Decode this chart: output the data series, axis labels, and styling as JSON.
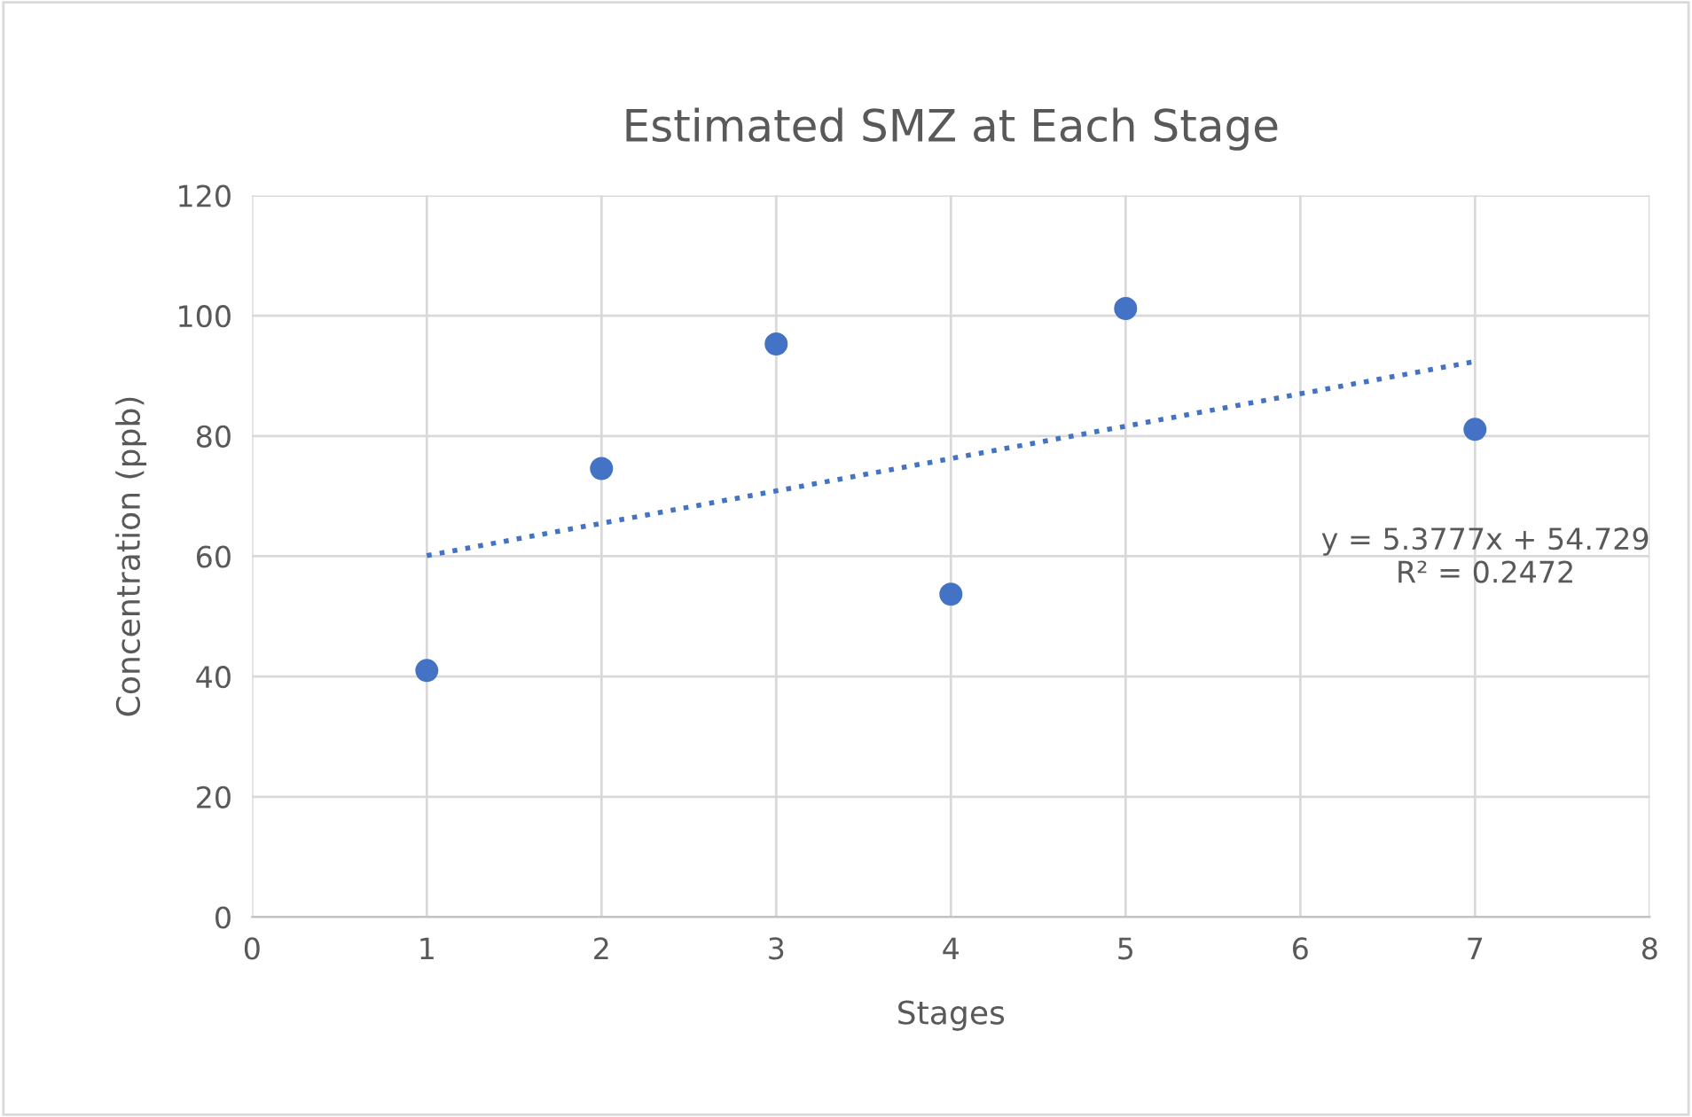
{
  "chart_data": {
    "type": "scatter",
    "title": "Estimated SMZ at Each Stage",
    "xlabel": "Stages",
    "ylabel": "Concentration (ppb)",
    "series": [
      {
        "color": "#4472c4",
        "x": [
          1,
          2,
          3,
          4,
          5,
          7
        ],
        "values": [
          41,
          74.6,
          95.3,
          53.7,
          101.2,
          81.1
        ],
        "marker": "circle"
      },
      {
        "type": "line",
        "color": "#4472c4",
        "x": [
          1,
          7
        ],
        "values": [
          60.1,
          92.4
        ],
        "line_style": "dotted",
        "marker": "none"
      }
    ],
    "annotations": [
      "y = 5.3777x + 54.729\nR² = 0.2472"
    ],
    "xlim": [
      0,
      8
    ],
    "xticks": [
      0,
      1,
      2,
      3,
      4,
      5,
      6,
      7,
      8
    ],
    "ylim": [
      0,
      120
    ],
    "yticks": [
      0,
      20,
      40,
      60,
      80,
      100,
      120
    ],
    "grid": true
  }
}
